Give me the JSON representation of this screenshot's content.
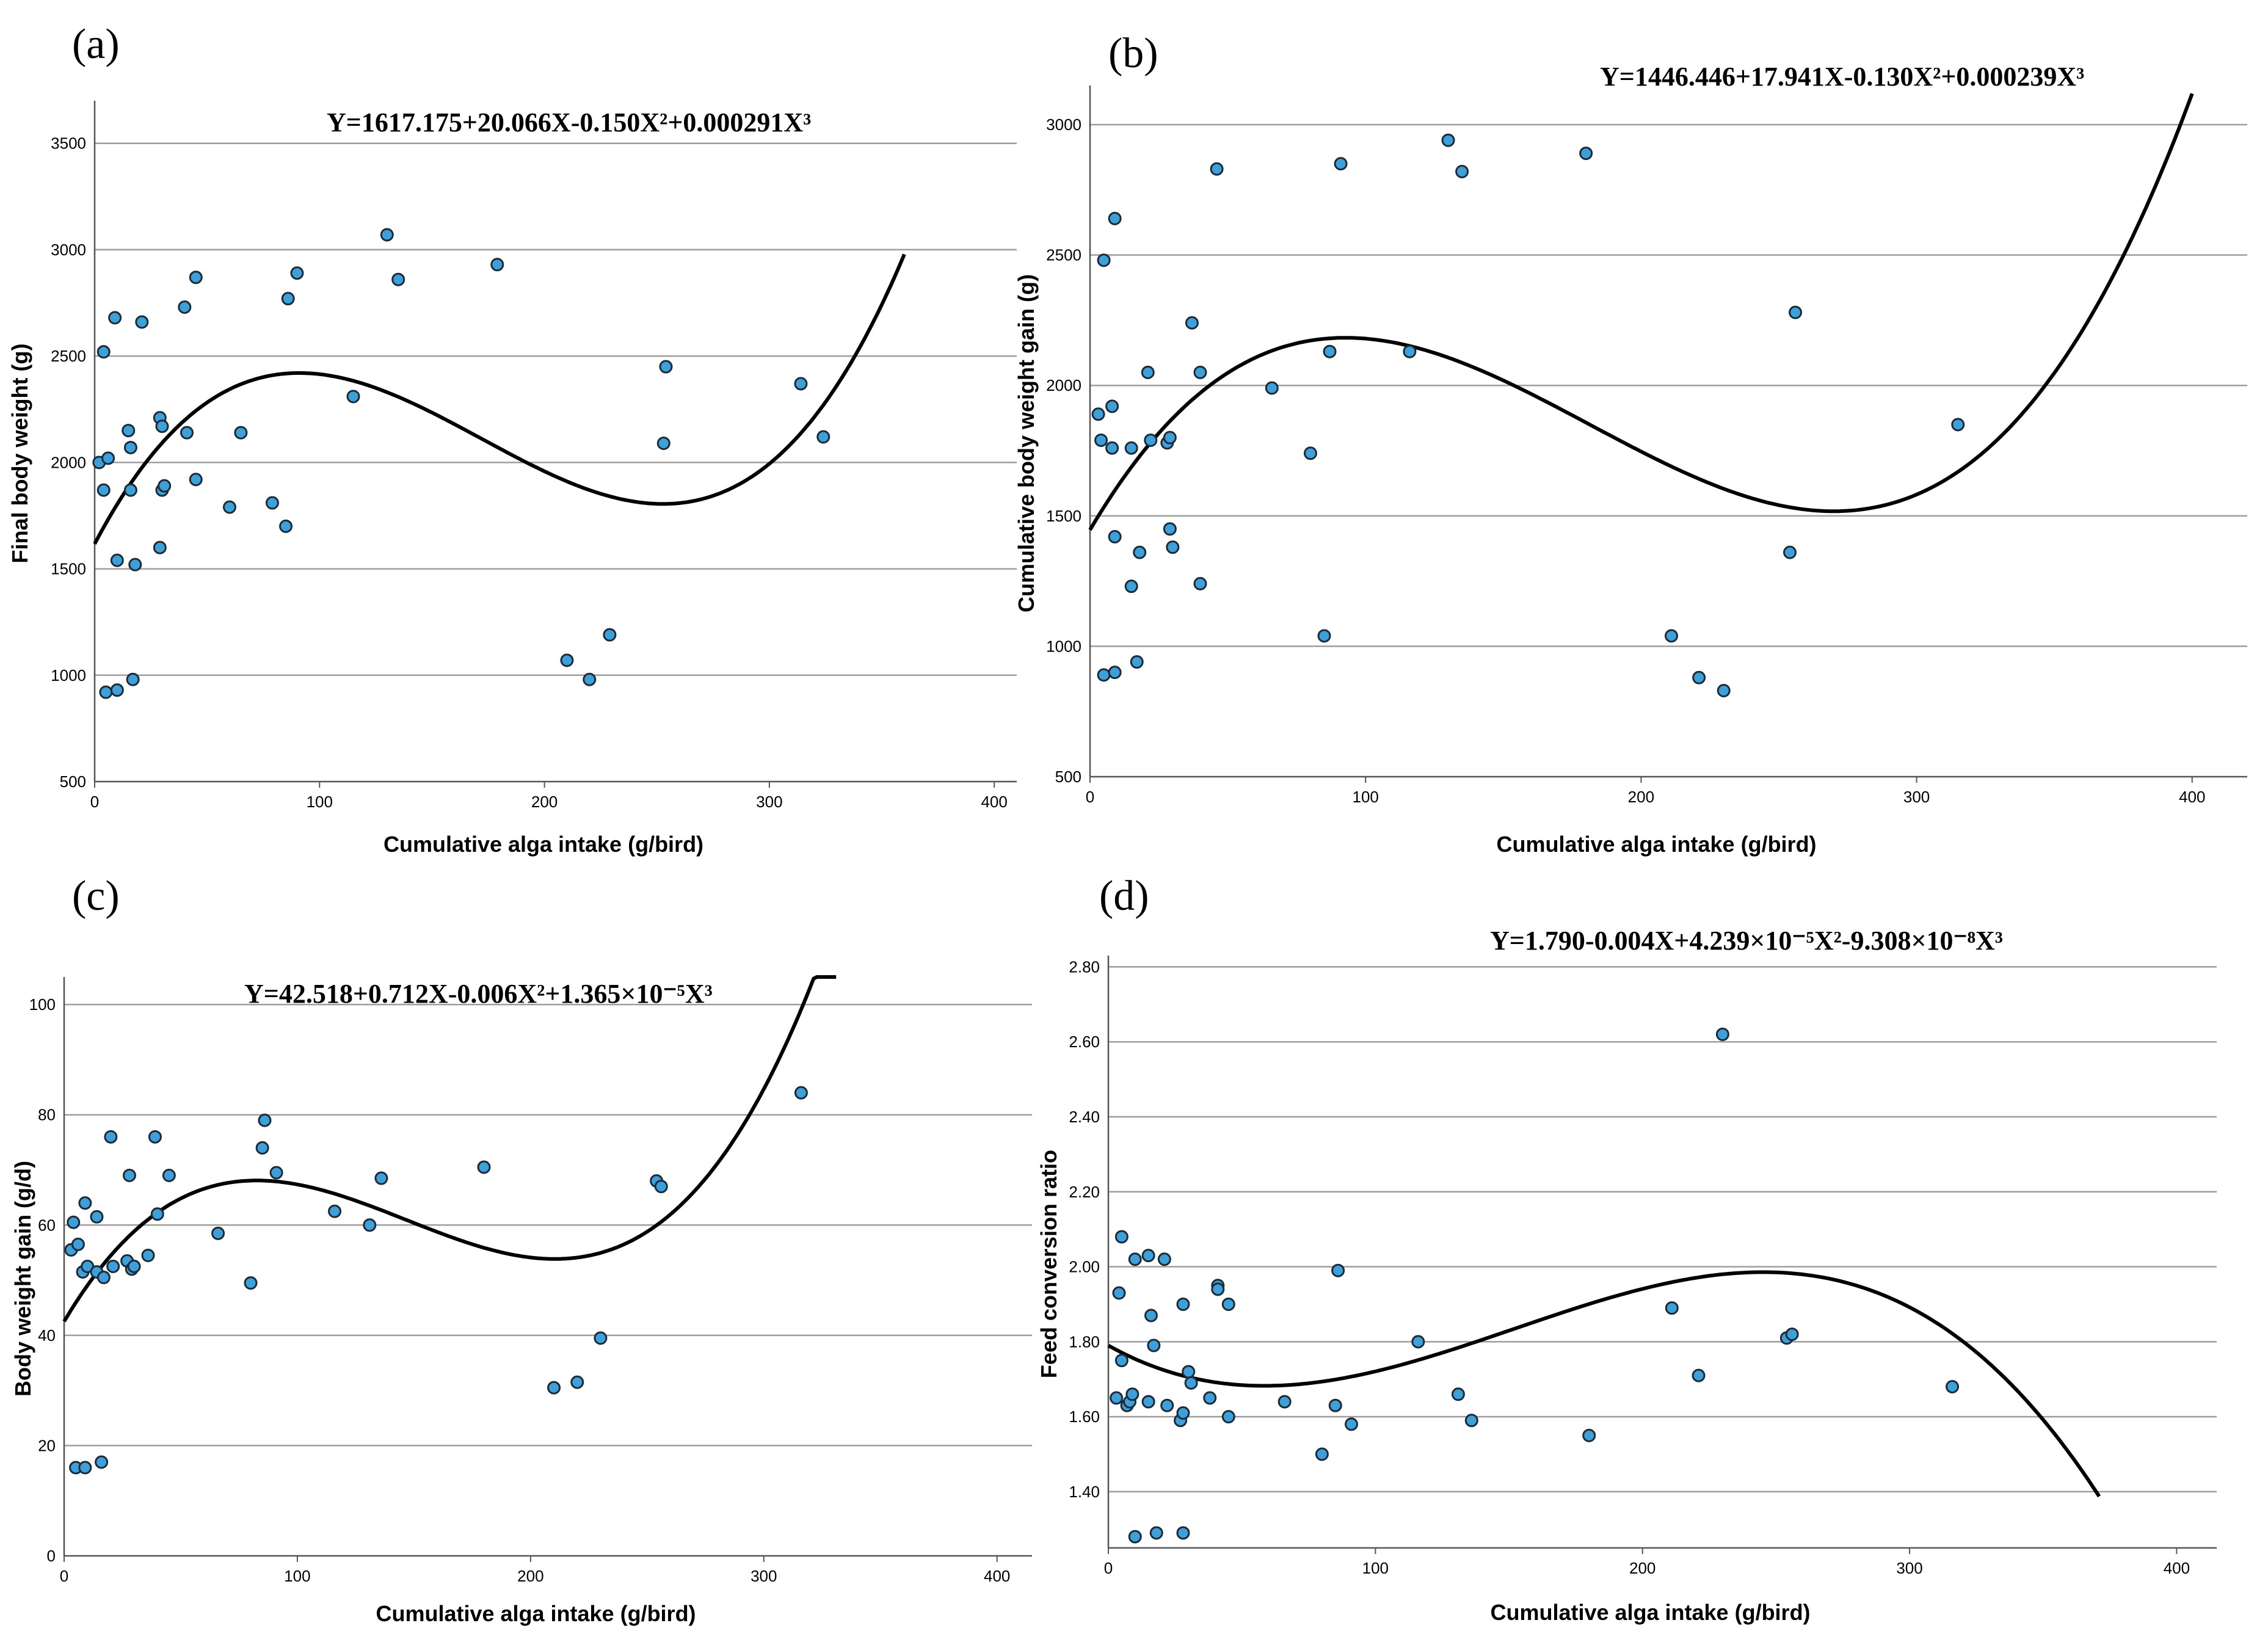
{
  "chart_data": [
    {
      "id": "a",
      "type": "scatter",
      "panel_label": "(a)",
      "equation": "Y=1617.175+20.066X-0.150X²+0.000291X³",
      "xlabel": "Cumulative alga intake (g/bird)",
      "ylabel": "Final body weight (g)",
      "xlim": [
        0,
        410
      ],
      "ylim": [
        500,
        3700
      ],
      "x_ticks": [
        0,
        100,
        200,
        300,
        400
      ],
      "y_ticks": [
        500,
        1000,
        1500,
        2000,
        2500,
        3000,
        3500
      ],
      "y_tick_labels": [
        "500",
        "1000",
        "1500",
        "2000",
        "2500",
        "3000",
        "3500"
      ],
      "grid": "horizontal",
      "fit": {
        "coefficients": [
          1617.175,
          20.066,
          -0.15,
          0.000291
        ],
        "x_range": [
          0,
          360
        ]
      },
      "points": [
        [
          2,
          2000
        ],
        [
          4,
          1870
        ],
        [
          4,
          2520
        ],
        [
          5,
          920
        ],
        [
          6,
          2020
        ],
        [
          9,
          2680
        ],
        [
          10,
          1540
        ],
        [
          10,
          930
        ],
        [
          15,
          2150
        ],
        [
          16,
          2070
        ],
        [
          16,
          1870
        ],
        [
          17,
          980
        ],
        [
          18,
          1520
        ],
        [
          21,
          2660
        ],
        [
          29,
          1600
        ],
        [
          29,
          2210
        ],
        [
          30,
          2170
        ],
        [
          30,
          1870
        ],
        [
          31,
          1890
        ],
        [
          40,
          2730
        ],
        [
          41,
          2140
        ],
        [
          45,
          2870
        ],
        [
          45,
          1920
        ],
        [
          60,
          1790
        ],
        [
          65,
          2140
        ],
        [
          79,
          1810
        ],
        [
          85,
          1700
        ],
        [
          86,
          2770
        ],
        [
          90,
          2890
        ],
        [
          115,
          2310
        ],
        [
          130,
          3070
        ],
        [
          135,
          2860
        ],
        [
          179,
          2930
        ],
        [
          210,
          1070
        ],
        [
          220,
          980
        ],
        [
          229,
          1190
        ],
        [
          253,
          2090
        ],
        [
          254,
          2450
        ],
        [
          314,
          2370
        ],
        [
          324,
          2120
        ]
      ]
    },
    {
      "id": "b",
      "type": "scatter",
      "panel_label": "(b)",
      "equation": "Y=1446.446+17.941X-0.130X²+0.000239X³",
      "xlabel": "Cumulative alga intake (g/bird)",
      "ylabel": "Cumulative body weight gain (g)",
      "xlim": [
        0,
        420
      ],
      "ylim": [
        500,
        3150
      ],
      "x_ticks": [
        0,
        100,
        200,
        300,
        400
      ],
      "y_ticks": [
        500,
        1000,
        1500,
        2000,
        2500,
        3000
      ],
      "y_tick_labels": [
        "500",
        "1000",
        "1500",
        "2000",
        "2500",
        "3000"
      ],
      "grid": "horizontal",
      "fit": {
        "coefficients": [
          1446.446,
          17.941,
          -0.13,
          0.000239
        ],
        "x_range": [
          0,
          400
        ]
      },
      "points": [
        [
          3,
          1890
        ],
        [
          4,
          1790
        ],
        [
          5,
          2480
        ],
        [
          5,
          890
        ],
        [
          8,
          1920
        ],
        [
          8,
          1760
        ],
        [
          9,
          2640
        ],
        [
          9,
          900
        ],
        [
          9,
          1420
        ],
        [
          15,
          1230
        ],
        [
          15,
          1760
        ],
        [
          17,
          940
        ],
        [
          18,
          1360
        ],
        [
          21,
          2050
        ],
        [
          22,
          1790
        ],
        [
          28,
          1780
        ],
        [
          29,
          1800
        ],
        [
          29,
          1450
        ],
        [
          30,
          1380
        ],
        [
          37,
          2240
        ],
        [
          40,
          2050
        ],
        [
          40,
          1240
        ],
        [
          46,
          2830
        ],
        [
          66,
          1990
        ],
        [
          80,
          1740
        ],
        [
          85,
          1040
        ],
        [
          87,
          2130
        ],
        [
          91,
          2850
        ],
        [
          116,
          2130
        ],
        [
          130,
          2940
        ],
        [
          135,
          2820
        ],
        [
          180,
          2890
        ],
        [
          211,
          1040
        ],
        [
          221,
          880
        ],
        [
          230,
          830
        ],
        [
          254,
          1360
        ],
        [
          256,
          2280
        ],
        [
          315,
          1850
        ]
      ]
    },
    {
      "id": "c",
      "type": "scatter",
      "panel_label": "(c)",
      "equation": "Y=42.518+0.712X-0.006X²+1.365×10⁻⁵X³",
      "xlabel": "Cumulative alga intake (g/bird)",
      "ylabel": "Body weight gain (g/d)",
      "xlim": [
        0,
        415
      ],
      "ylim": [
        0,
        105
      ],
      "x_ticks": [
        0,
        100,
        200,
        300,
        400
      ],
      "y_ticks": [
        0,
        20,
        40,
        60,
        80,
        100
      ],
      "y_tick_labels": [
        "0",
        "20",
        "40",
        "60",
        "80",
        "100"
      ],
      "grid": "horizontal",
      "fit": {
        "coefficients": [
          42.518,
          0.712,
          -0.006,
          1.365e-05
        ],
        "x_range": [
          0,
          331
        ]
      },
      "points": [
        [
          3,
          55.5
        ],
        [
          4,
          60.5
        ],
        [
          5,
          16
        ],
        [
          6,
          56.5
        ],
        [
          8,
          51.5
        ],
        [
          9,
          64
        ],
        [
          9,
          16
        ],
        [
          10,
          52.5
        ],
        [
          14,
          61.5
        ],
        [
          14,
          51.5
        ],
        [
          16,
          17
        ],
        [
          17,
          50.5
        ],
        [
          20,
          76
        ],
        [
          21,
          52.5
        ],
        [
          27,
          53.5
        ],
        [
          28,
          69
        ],
        [
          29,
          52
        ],
        [
          30,
          52.5
        ],
        [
          36,
          54.5
        ],
        [
          39,
          76
        ],
        [
          40,
          62
        ],
        [
          45,
          69
        ],
        [
          66,
          58.5
        ],
        [
          80,
          49.5
        ],
        [
          85,
          74
        ],
        [
          86,
          79
        ],
        [
          91,
          69.5
        ],
        [
          116,
          62.5
        ],
        [
          131,
          60
        ],
        [
          136,
          68.5
        ],
        [
          180,
          70.5
        ],
        [
          210,
          30.5
        ],
        [
          220,
          31.5
        ],
        [
          230,
          39.5
        ],
        [
          254,
          68
        ],
        [
          256,
          67
        ],
        [
          316,
          84
        ]
      ]
    },
    {
      "id": "d",
      "type": "scatter",
      "panel_label": "(d)",
      "equation": "Y=1.790-0.004X+4.239×10⁻⁵X²-9.308×10⁻⁸X³",
      "xlabel": "Cumulative alga intake (g/bird)",
      "ylabel": "Feed conversion ratio",
      "xlim": [
        0,
        415
      ],
      "ylim": [
        1.25,
        2.83
      ],
      "x_ticks": [
        0,
        100,
        200,
        300,
        400
      ],
      "y_ticks": [
        1.4,
        1.6,
        1.8,
        2.0,
        2.2,
        2.4,
        2.6,
        2.8
      ],
      "y_tick_labels": [
        "1.40",
        "1.60",
        "1.80",
        "2.00",
        "2.20",
        "2.40",
        "2.60",
        "2.80"
      ],
      "grid": "horizontal",
      "fit": {
        "coefficients": [
          1.79,
          -0.004,
          4.239e-05,
          -9.308e-08
        ],
        "x_range": [
          0,
          371
        ]
      },
      "points": [
        [
          3,
          1.65
        ],
        [
          4,
          1.93
        ],
        [
          5,
          2.08
        ],
        [
          5,
          1.75
        ],
        [
          7,
          1.63
        ],
        [
          8,
          1.64
        ],
        [
          9,
          1.66
        ],
        [
          10,
          2.02
        ],
        [
          10,
          1.28
        ],
        [
          15,
          2.03
        ],
        [
          15,
          1.64
        ],
        [
          16,
          1.87
        ],
        [
          17,
          1.79
        ],
        [
          18,
          1.29
        ],
        [
          21,
          2.02
        ],
        [
          22,
          1.63
        ],
        [
          27,
          1.59
        ],
        [
          28,
          1.61
        ],
        [
          28,
          1.9
        ],
        [
          28,
          1.29
        ],
        [
          30,
          1.72
        ],
        [
          31,
          1.69
        ],
        [
          38,
          1.65
        ],
        [
          41,
          1.95
        ],
        [
          41,
          1.94
        ],
        [
          45,
          1.9
        ],
        [
          45,
          1.6
        ],
        [
          66,
          1.64
        ],
        [
          80,
          1.5
        ],
        [
          85,
          1.63
        ],
        [
          86,
          1.99
        ],
        [
          91,
          1.58
        ],
        [
          116,
          1.8
        ],
        [
          131,
          1.66
        ],
        [
          136,
          1.59
        ],
        [
          180,
          1.55
        ],
        [
          211,
          1.89
        ],
        [
          221,
          1.71
        ],
        [
          230,
          2.62
        ],
        [
          254,
          1.81
        ],
        [
          256,
          1.82
        ],
        [
          316,
          1.68
        ]
      ]
    }
  ]
}
